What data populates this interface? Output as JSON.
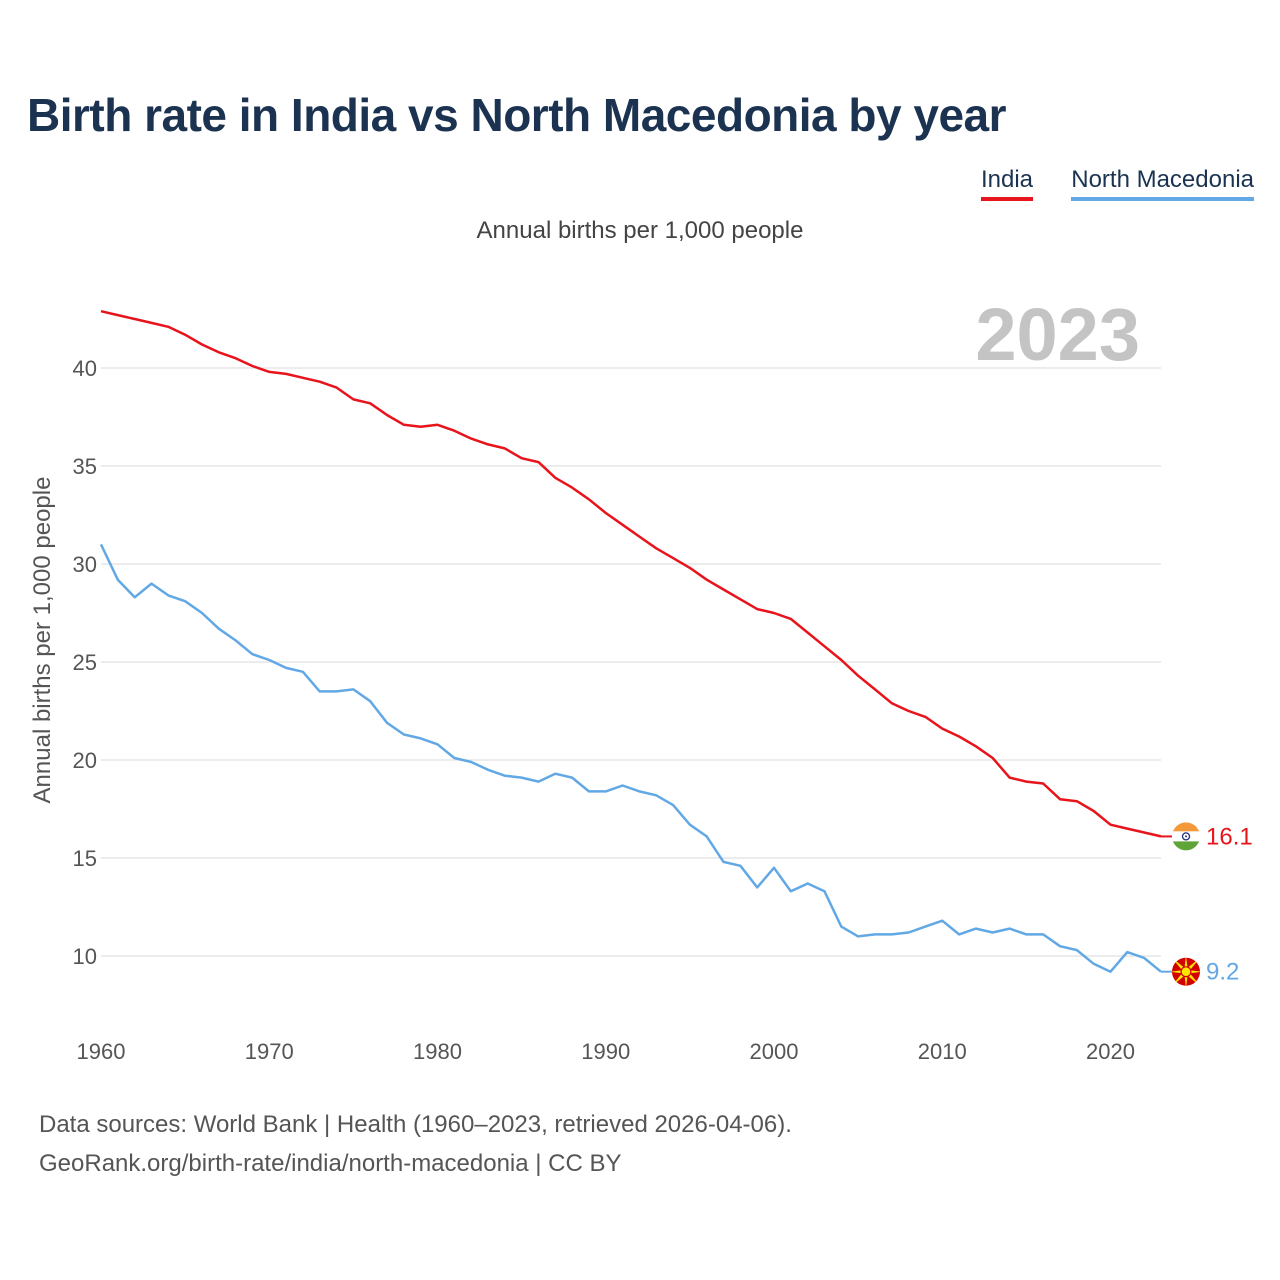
{
  "chart_data": {
    "type": "line",
    "title": "Birth rate in India vs North Macedonia by year",
    "subtitle": "Annual births per 1,000 people",
    "ylabel": "Annual births per 1,000 people",
    "xlabel": "",
    "year_badge": "2023",
    "xlim": [
      1960,
      2023
    ],
    "ylim": [
      7,
      45
    ],
    "x_ticks": [
      1960,
      1970,
      1980,
      1990,
      2000,
      2010,
      2020
    ],
    "y_ticks": [
      10,
      15,
      20,
      25,
      30,
      35,
      40
    ],
    "grid": "horizontal",
    "legend_position": "top-right",
    "x": [
      1960,
      1961,
      1962,
      1963,
      1964,
      1965,
      1966,
      1967,
      1968,
      1969,
      1970,
      1971,
      1972,
      1973,
      1974,
      1975,
      1976,
      1977,
      1978,
      1979,
      1980,
      1981,
      1982,
      1983,
      1984,
      1985,
      1986,
      1987,
      1988,
      1989,
      1990,
      1991,
      1992,
      1993,
      1994,
      1995,
      1996,
      1997,
      1998,
      1999,
      2000,
      2001,
      2002,
      2003,
      2004,
      2005,
      2006,
      2007,
      2008,
      2009,
      2010,
      2011,
      2012,
      2013,
      2014,
      2015,
      2016,
      2017,
      2018,
      2019,
      2020,
      2021,
      2022,
      2023
    ],
    "series": [
      {
        "name": "India",
        "color": "#e8141c",
        "end_label": "16.1",
        "flag": "india-flag",
        "values": [
          42.9,
          42.7,
          42.5,
          42.3,
          42.1,
          41.7,
          41.2,
          40.8,
          40.5,
          40.1,
          39.8,
          39.7,
          39.5,
          39.3,
          39.0,
          38.4,
          38.2,
          37.6,
          37.1,
          37.0,
          37.1,
          36.8,
          36.4,
          36.1,
          35.9,
          35.4,
          35.2,
          34.4,
          33.9,
          33.3,
          32.6,
          32.0,
          31.4,
          30.8,
          30.3,
          29.8,
          29.2,
          28.7,
          28.2,
          27.7,
          27.5,
          27.2,
          26.5,
          25.8,
          25.1,
          24.3,
          23.6,
          22.9,
          22.5,
          22.2,
          21.6,
          21.2,
          20.7,
          20.1,
          19.1,
          18.9,
          18.8,
          18.0,
          17.9,
          17.4,
          16.7,
          16.5,
          16.3,
          16.1
        ]
      },
      {
        "name": "North Macedonia",
        "color": "#62a8e5",
        "end_label": "9.2",
        "flag": "north-macedonia-flag",
        "values": [
          31.0,
          29.2,
          28.3,
          29.0,
          28.4,
          28.1,
          27.5,
          26.7,
          26.1,
          25.4,
          25.1,
          24.7,
          24.5,
          23.5,
          23.5,
          23.6,
          23.0,
          21.9,
          21.3,
          21.1,
          20.8,
          20.1,
          19.9,
          19.5,
          19.2,
          19.1,
          18.9,
          19.3,
          19.1,
          18.4,
          18.4,
          18.7,
          18.4,
          18.2,
          17.7,
          16.7,
          16.1,
          14.8,
          14.6,
          13.5,
          14.5,
          13.3,
          13.7,
          13.3,
          11.5,
          11.0,
          11.1,
          11.1,
          11.2,
          11.5,
          11.8,
          11.1,
          11.4,
          11.2,
          11.4,
          11.1,
          11.1,
          10.5,
          10.3,
          9.6,
          9.2,
          10.2,
          9.9,
          9.2
        ]
      }
    ]
  },
  "sources": {
    "line1": "Data sources: World Bank | Health (1960–2023, retrieved 2026-04-06).",
    "line2": "GeoRank.org/birth-rate/india/north-macedonia | CC BY"
  }
}
